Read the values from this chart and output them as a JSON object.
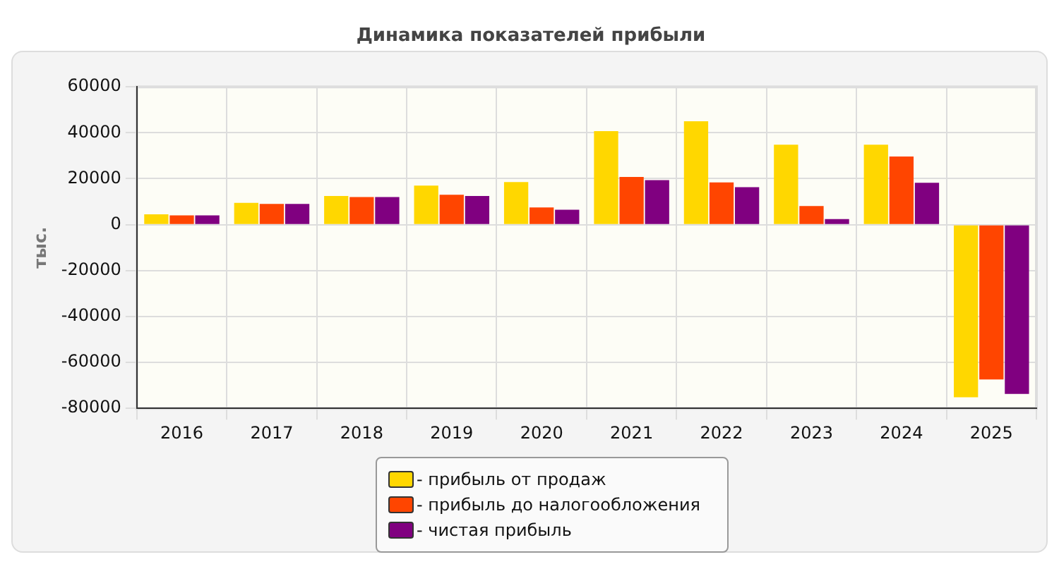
{
  "chart_data": {
    "type": "bar",
    "title": "Динамика показателей прибыли",
    "ylabel": "тыс.",
    "categories": [
      "2016",
      "2017",
      "2018",
      "2019",
      "2020",
      "2021",
      "2022",
      "2023",
      "2024",
      "2025"
    ],
    "series": [
      {
        "name": "- прибыль от продаж",
        "color": "#ffd700",
        "values": [
          4500,
          9500,
          12500,
          17000,
          18500,
          40700,
          45000,
          34800,
          34800,
          -75200
        ]
      },
      {
        "name": "- прибыль до налогообложения",
        "color": "#ff4500",
        "values": [
          4000,
          9000,
          12000,
          13000,
          7500,
          20800,
          18400,
          8100,
          29700,
          -67400
        ]
      },
      {
        "name": "- чистая прибыль",
        "color": "#800080",
        "values": [
          4000,
          9000,
          12000,
          12500,
          6500,
          19400,
          16300,
          2400,
          18200,
          -73700
        ]
      }
    ],
    "ylim": [
      -80000,
      60000
    ],
    "yticks": [
      -80000,
      -60000,
      -40000,
      -20000,
      0,
      20000,
      40000,
      60000
    ],
    "grid": true,
    "legend": "bottom"
  }
}
